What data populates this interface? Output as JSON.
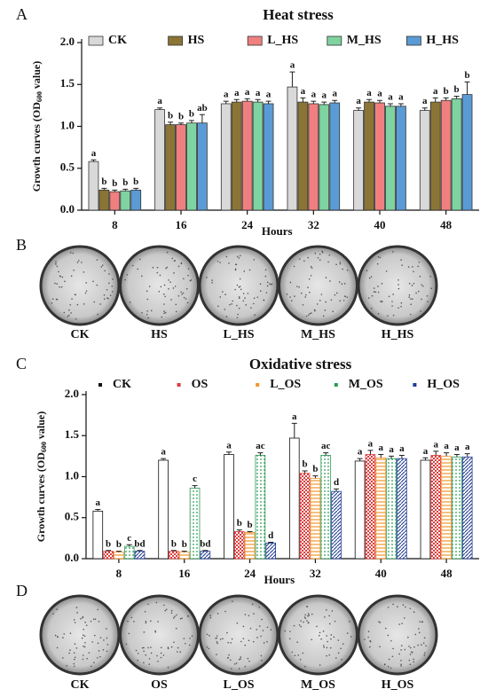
{
  "panel_labels": [
    "A",
    "B",
    "C",
    "D"
  ],
  "plates_b": [
    "CK",
    "HS",
    "L_HS",
    "M_HS",
    "H_HS"
  ],
  "plates_d": [
    "CK",
    "OS",
    "L_OS",
    "M_OS",
    "H_OS"
  ],
  "chart_data": [
    {
      "type": "bar",
      "title": "Heat stress",
      "ylabel": [
        "Growth curves (OD",
        "600",
        " value)"
      ],
      "xlabel": "Hours",
      "categories": [
        "8",
        "16",
        "24",
        "32",
        "40",
        "48"
      ],
      "legend": "top",
      "ylim": [
        0,
        2
      ],
      "yticks": [
        {
          "value": 0,
          "label": "0.0"
        },
        {
          "value": 0.5,
          "label": "0.5"
        },
        {
          "value": 1,
          "label": "1.0"
        },
        {
          "value": 1.5,
          "label": "1.5"
        },
        {
          "value": 2,
          "label": "2.0"
        }
      ],
      "series": [
        {
          "name": "CK",
          "color": "#d9d9d9",
          "pattern": "solid",
          "values": [
            0.58,
            1.2,
            1.27,
            1.47,
            1.19,
            1.19
          ],
          "errors": [
            0.02,
            0.02,
            0.03,
            0.18,
            0.03,
            0.03
          ],
          "letters": [
            "a",
            "a",
            "a",
            "a",
            "a",
            "a"
          ]
        },
        {
          "name": "HS",
          "color": "#8b7536",
          "pattern": "solid",
          "values": [
            0.24,
            1.02,
            1.29,
            1.29,
            1.29,
            1.29
          ],
          "errors": [
            0.02,
            0.03,
            0.03,
            0.05,
            0.03,
            0.05
          ],
          "letters": [
            "b",
            "b",
            "a",
            "a",
            "a",
            "a"
          ]
        },
        {
          "name": "L_HS",
          "color": "#f08080",
          "pattern": "solid",
          "values": [
            0.22,
            1.02,
            1.3,
            1.27,
            1.28,
            1.31
          ],
          "errors": [
            0.02,
            0.02,
            0.03,
            0.03,
            0.03,
            0.03
          ],
          "letters": [
            "b",
            "b",
            "a",
            "a",
            "a",
            "b"
          ]
        },
        {
          "name": "M_HS",
          "color": "#7fd3a0",
          "pattern": "solid",
          "values": [
            0.23,
            1.04,
            1.29,
            1.26,
            1.24,
            1.33
          ],
          "errors": [
            0.02,
            0.03,
            0.03,
            0.03,
            0.03,
            0.03
          ],
          "letters": [
            "b",
            "b",
            "a",
            "a",
            "a",
            "b"
          ]
        },
        {
          "name": "H_HS",
          "color": "#5b9bd5",
          "pattern": "solid",
          "values": [
            0.24,
            1.04,
            1.27,
            1.28,
            1.24,
            1.38
          ],
          "errors": [
            0.02,
            0.1,
            0.03,
            0.03,
            0.03,
            0.15
          ],
          "letters": [
            "b",
            "ab",
            "a",
            "a",
            "a",
            "b"
          ]
        }
      ]
    },
    {
      "type": "bar",
      "title": "Oxidative stress",
      "ylabel": [
        "Growth curves (OD",
        "600",
        " value)"
      ],
      "xlabel": "Hours",
      "categories": [
        "8",
        "16",
        "24",
        "32",
        "40",
        "48"
      ],
      "legend": "top",
      "ylim": [
        0,
        2
      ],
      "yticks": [
        {
          "value": 0,
          "label": "0.0"
        },
        {
          "value": 0.5,
          "label": "0.5"
        },
        {
          "value": 1,
          "label": "1.0"
        },
        {
          "value": 1.5,
          "label": "1.5"
        },
        {
          "value": 2,
          "label": "2.0"
        }
      ],
      "series": [
        {
          "name": "CK",
          "color": "#111111",
          "pattern": "outline",
          "values": [
            0.58,
            1.2,
            1.27,
            1.47,
            1.19,
            1.2
          ],
          "errors": [
            0.02,
            0.02,
            0.03,
            0.18,
            0.03,
            0.03
          ],
          "letters": [
            "a",
            "a",
            "a",
            "a",
            "a",
            "a"
          ]
        },
        {
          "name": "OS",
          "color": "#e03c3c",
          "pattern": "checker",
          "values": [
            0.09,
            0.09,
            0.33,
            1.04,
            1.27,
            1.26
          ],
          "errors": [
            0.01,
            0.01,
            0.02,
            0.03,
            0.05,
            0.05
          ],
          "letters": [
            "b",
            "b",
            "b",
            "b",
            "a",
            "a"
          ]
        },
        {
          "name": "L_OS",
          "color": "#f0962d",
          "pattern": "lines",
          "values": [
            0.08,
            0.08,
            0.32,
            0.98,
            1.23,
            1.25
          ],
          "errors": [
            0.01,
            0.01,
            0.01,
            0.03,
            0.04,
            0.04
          ],
          "letters": [
            "b",
            "b",
            "b",
            "b",
            "a",
            "a"
          ]
        },
        {
          "name": "M_OS",
          "color": "#2a9a55",
          "pattern": "dots",
          "values": [
            0.15,
            0.86,
            1.26,
            1.26,
            1.22,
            1.24
          ],
          "errors": [
            0.02,
            0.03,
            0.03,
            0.03,
            0.03,
            0.03
          ],
          "letters": [
            "c",
            "c",
            "ac",
            "ac",
            "a",
            "a"
          ]
        },
        {
          "name": "H_OS",
          "color": "#1f3a93",
          "pattern": "stripes",
          "values": [
            0.09,
            0.09,
            0.19,
            0.82,
            1.22,
            1.24
          ],
          "errors": [
            0.01,
            0.01,
            0.01,
            0.03,
            0.04,
            0.04
          ],
          "letters": [
            "bd",
            "bd",
            "d",
            "d",
            "a",
            "a"
          ]
        }
      ]
    }
  ]
}
